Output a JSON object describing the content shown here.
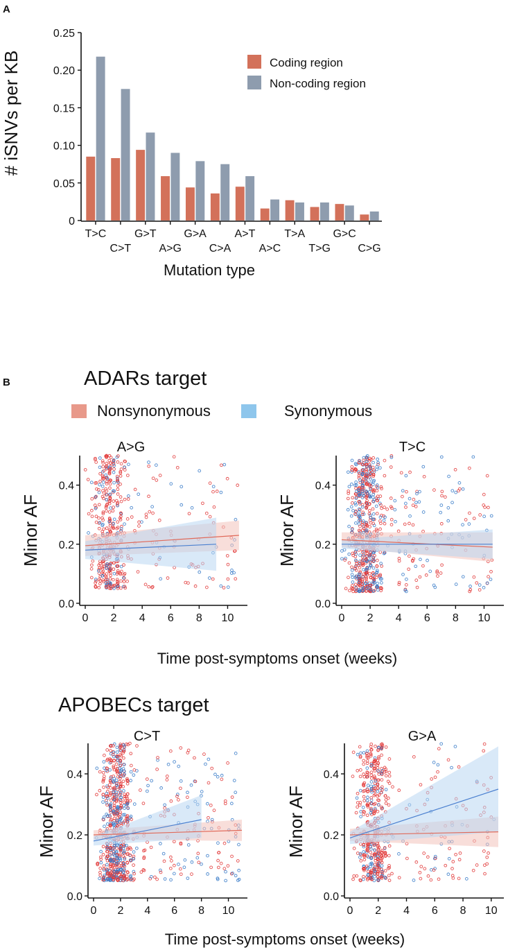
{
  "colors": {
    "coding": "#d3715a",
    "noncoding": "#8e9cae",
    "nonsyn": "#e23b3b",
    "syn": "#3a7cc9",
    "nonsyn_line": "#e06a5a",
    "syn_line": "#4a7fcf",
    "nonsyn_band": "#f3c2bb",
    "syn_band": "#b9d7f2",
    "legend_nonsyn": "#e8998a",
    "legend_syn": "#8ec6ec"
  },
  "panel_a": {
    "label": "A",
    "chart_data": {
      "type": "bar",
      "title": "",
      "xlabel": "Mutation type",
      "ylabel": "# iSNVs per KB",
      "ylim": [
        0,
        0.25
      ],
      "yticks": [
        "0",
        "0.05",
        "0.10",
        "0.15",
        "0.20",
        "0.25"
      ],
      "categories": [
        "T>C",
        "C>T",
        "G>T",
        "A>G",
        "G>A",
        "C>A",
        "A>T",
        "A>C",
        "T>A",
        "T>G",
        "G>C",
        "C>G"
      ],
      "series": [
        {
          "name": "Coding region",
          "values": [
            0.085,
            0.083,
            0.094,
            0.059,
            0.044,
            0.036,
            0.045,
            0.016,
            0.027,
            0.018,
            0.022,
            0.008
          ]
        },
        {
          "name": "Non-coding region",
          "values": [
            0.218,
            0.175,
            0.117,
            0.09,
            0.079,
            0.075,
            0.059,
            0.028,
            0.024,
            0.024,
            0.02,
            0.012
          ]
        }
      ],
      "legend": [
        "Coding region",
        "Non-coding region"
      ]
    }
  },
  "panel_b": {
    "label": "B",
    "adars_title": "ADARs target",
    "apobecs_title": "APOBECs target",
    "legend": {
      "nonsyn": "Nonsynonymous",
      "syn": "Synonymous"
    },
    "xlabel_top": "Time post-symptoms onset (weeks)",
    "xlabel_bottom": "Time post-symptoms onset (weeks)",
    "chart_data": [
      {
        "type": "scatter",
        "title": "A>G",
        "xlabel": "Time post-symptoms onset (weeks)",
        "ylabel": "Minor AF",
        "xlim": [
          0,
          11
        ],
        "ylim": [
          0,
          0.5
        ],
        "xticks": [
          "0",
          "2",
          "4",
          "6",
          "8",
          "10"
        ],
        "yticks": [
          "0.0",
          "0.2",
          "0.4"
        ],
        "trend": {
          "Nonsynonymous": {
            "x": [
              0,
              10.8
            ],
            "y": [
              0.195,
              0.23
            ],
            "band": [
              0.16,
              0.23,
              0.18,
              0.28
            ]
          },
          "Synonymous": {
            "x": [
              0,
              9.2
            ],
            "y": [
              0.18,
              0.2
            ],
            "band": [
              0.15,
              0.21,
              0.11,
              0.29
            ]
          }
        },
        "points": {
          "n": 520,
          "seed": 11,
          "xmax": 10.8,
          "ymin": 0.05,
          "ymax": 0.5,
          "syn_frac": 0.3
        }
      },
      {
        "type": "scatter",
        "title": "T>C",
        "xlabel": "Time post-symptoms onset (weeks)",
        "ylabel": "Minor AF",
        "xlim": [
          0,
          11
        ],
        "ylim": [
          0,
          0.5
        ],
        "xticks": [
          "0",
          "2",
          "4",
          "6",
          "8",
          "10"
        ],
        "yticks": [
          "0.0",
          "0.2",
          "0.4"
        ],
        "trend": {
          "Nonsynonymous": {
            "x": [
              0,
              10.6
            ],
            "y": [
              0.215,
              0.19
            ],
            "band": [
              0.19,
              0.24,
              0.14,
              0.24
            ]
          },
          "Synonymous": {
            "x": [
              0,
              10.6
            ],
            "y": [
              0.2,
              0.2
            ],
            "band": [
              0.185,
              0.215,
              0.15,
              0.25
            ]
          }
        },
        "points": {
          "n": 780,
          "seed": 23,
          "xmax": 10.6,
          "ymin": 0.04,
          "ymax": 0.5,
          "syn_frac": 0.4
        }
      },
      {
        "type": "scatter",
        "title": "C>T",
        "xlabel": "Time post-symptoms onset (weeks)",
        "ylabel": "Minor AF",
        "xlim": [
          0,
          11
        ],
        "ylim": [
          0,
          0.5
        ],
        "xticks": [
          "0",
          "2",
          "4",
          "6",
          "8",
          "10"
        ],
        "yticks": [
          "0.0",
          "0.2",
          "0.4"
        ],
        "trend": {
          "Nonsynonymous": {
            "x": [
              0,
              11
            ],
            "y": [
              0.2,
              0.215
            ],
            "band": [
              0.185,
              0.215,
              0.18,
              0.25
            ]
          },
          "Synonymous": {
            "x": [
              0,
              8
            ],
            "y": [
              0.18,
              0.25
            ],
            "band": [
              0.165,
              0.195,
              0.19,
              0.33
            ]
          }
        },
        "points": {
          "n": 820,
          "seed": 37,
          "xmax": 11,
          "ymin": 0.05,
          "ymax": 0.5,
          "syn_frac": 0.38
        }
      },
      {
        "type": "scatter",
        "title": "G>A",
        "xlabel": "Time post-symptoms onset (weeks)",
        "ylabel": "Minor AF",
        "xlim": [
          0,
          10.5
        ],
        "ylim": [
          0,
          0.5
        ],
        "xticks": [
          "0",
          "2",
          "4",
          "6",
          "8",
          "10"
        ],
        "yticks": [
          "0.0",
          "0.2",
          "0.4"
        ],
        "trend": {
          "Nonsynonymous": {
            "x": [
              0,
              10.5
            ],
            "y": [
              0.2,
              0.21
            ],
            "band": [
              0.18,
              0.22,
              0.16,
              0.26
            ]
          },
          "Synonymous": {
            "x": [
              0,
              10.5
            ],
            "y": [
              0.19,
              0.35
            ],
            "band": [
              0.17,
              0.21,
              0.21,
              0.49
            ]
          }
        },
        "points": {
          "n": 560,
          "seed": 53,
          "xmax": 10.5,
          "ymin": 0.05,
          "ymax": 0.5,
          "syn_frac": 0.25
        }
      }
    ]
  }
}
